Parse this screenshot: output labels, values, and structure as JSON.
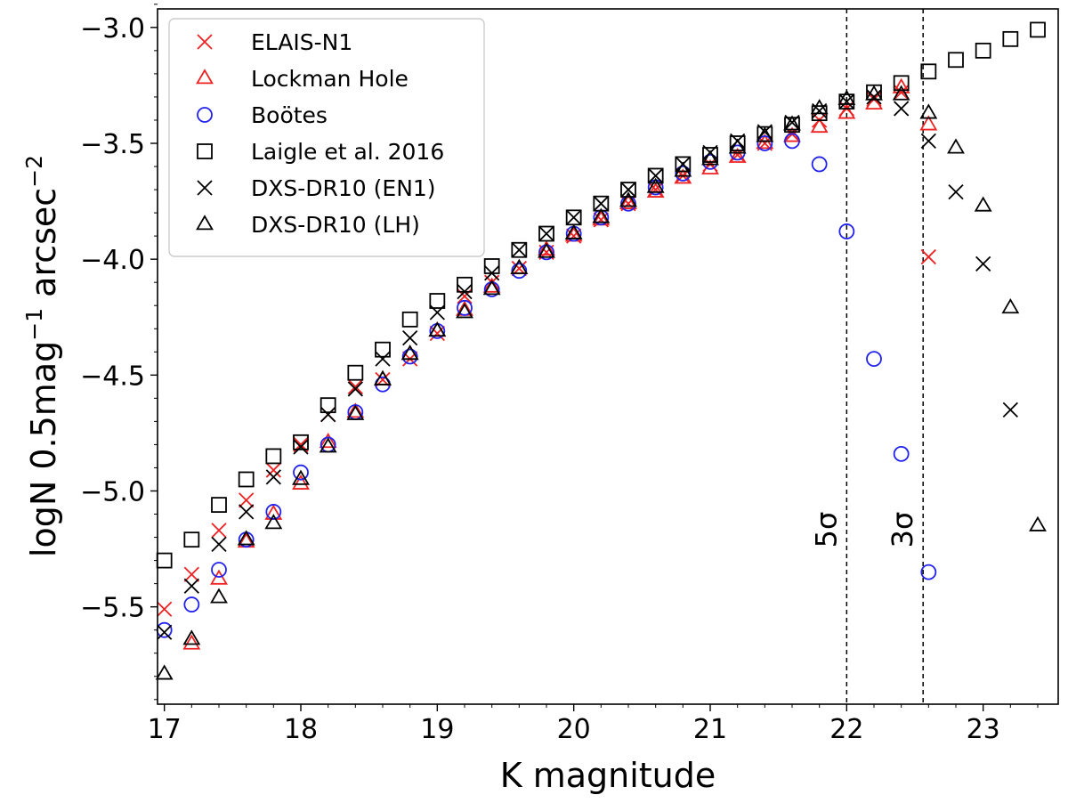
{
  "chart_data": {
    "type": "scatter",
    "title": "",
    "xlabel": "K magnitude",
    "ylabel_main": "logN 0.5mag",
    "ylabel_exp1": "−1",
    "ylabel_mid": " arcsec",
    "ylabel_exp2": "−2",
    "xlim": [
      16.95,
      23.55
    ],
    "ylim": [
      -5.92,
      -2.92
    ],
    "x_ticks": [
      17,
      18,
      19,
      20,
      21,
      22,
      23
    ],
    "x_tick_labels": [
      "17",
      "18",
      "19",
      "20",
      "21",
      "22",
      "23"
    ],
    "y_ticks": [
      -3.0,
      -3.5,
      -4.0,
      -4.5,
      -5.0,
      -5.5
    ],
    "y_tick_labels": [
      "−3.0",
      "−3.5",
      "−4.0",
      "−4.5",
      "−5.0",
      "−5.5"
    ],
    "legend_position": "top-left",
    "vlines": [
      {
        "x": 22.0,
        "label": "5σ"
      },
      {
        "x": 22.56,
        "label": "3σ"
      }
    ],
    "series": [
      {
        "name": "ELAIS-N1",
        "marker": "x",
        "color": "#ee2222",
        "points": [
          [
            17.0,
            -5.51
          ],
          [
            17.2,
            -5.36
          ],
          [
            17.4,
            -5.17
          ],
          [
            17.6,
            -5.04
          ],
          [
            17.8,
            -4.91
          ],
          [
            18.0,
            -4.8
          ],
          [
            18.2,
            -4.67
          ],
          [
            18.4,
            -4.55
          ],
          [
            18.6,
            -4.52
          ],
          [
            18.8,
            -4.43
          ],
          [
            19.0,
            -4.32
          ],
          [
            19.2,
            -4.16
          ],
          [
            19.4,
            -4.1
          ],
          [
            19.6,
            -4.04
          ],
          [
            19.8,
            -3.97
          ],
          [
            20.0,
            -3.9
          ],
          [
            20.2,
            -3.83
          ],
          [
            20.4,
            -3.76
          ],
          [
            20.6,
            -3.7
          ],
          [
            20.8,
            -3.64
          ],
          [
            21.0,
            -3.59
          ],
          [
            21.2,
            -3.55
          ],
          [
            21.4,
            -3.5
          ],
          [
            21.6,
            -3.46
          ],
          [
            21.8,
            -3.4
          ],
          [
            22.0,
            -3.35
          ],
          [
            22.2,
            -3.31
          ],
          [
            22.4,
            -3.28
          ],
          [
            22.6,
            -3.99
          ]
        ]
      },
      {
        "name": "Lockman Hole",
        "marker": "triangle",
        "color": "#ee2222",
        "points": [
          [
            17.2,
            -5.66
          ],
          [
            17.4,
            -5.38
          ],
          [
            17.6,
            -5.22
          ],
          [
            17.8,
            -5.1
          ],
          [
            18.0,
            -4.97
          ],
          [
            18.2,
            -4.79
          ],
          [
            18.4,
            -4.66
          ],
          [
            18.6,
            -4.52
          ],
          [
            18.8,
            -4.41
          ],
          [
            19.0,
            -4.31
          ],
          [
            19.2,
            -4.22
          ],
          [
            19.4,
            -4.12
          ],
          [
            19.6,
            -4.04
          ],
          [
            19.8,
            -3.96
          ],
          [
            20.0,
            -3.9
          ],
          [
            20.2,
            -3.83
          ],
          [
            20.4,
            -3.76
          ],
          [
            20.6,
            -3.71
          ],
          [
            20.8,
            -3.65
          ],
          [
            21.0,
            -3.61
          ],
          [
            21.2,
            -3.56
          ],
          [
            21.4,
            -3.5
          ],
          [
            21.6,
            -3.47
          ],
          [
            21.8,
            -3.43
          ],
          [
            22.0,
            -3.37
          ],
          [
            22.2,
            -3.33
          ],
          [
            22.4,
            -3.26
          ],
          [
            22.6,
            -3.42
          ]
        ]
      },
      {
        "name": "Boötes",
        "marker": "circle",
        "color": "#2222ee",
        "points": [
          [
            17.0,
            -5.6
          ],
          [
            17.2,
            -5.49
          ],
          [
            17.4,
            -5.34
          ],
          [
            17.6,
            -5.21
          ],
          [
            17.8,
            -5.09
          ],
          [
            18.0,
            -4.92
          ],
          [
            18.2,
            -4.8
          ],
          [
            18.4,
            -4.66
          ],
          [
            18.6,
            -4.54
          ],
          [
            18.8,
            -4.42
          ],
          [
            19.0,
            -4.31
          ],
          [
            19.2,
            -4.21
          ],
          [
            19.4,
            -4.13
          ],
          [
            19.6,
            -4.05
          ],
          [
            19.8,
            -3.97
          ],
          [
            20.0,
            -3.89
          ],
          [
            20.2,
            -3.82
          ],
          [
            20.4,
            -3.76
          ],
          [
            20.6,
            -3.69
          ],
          [
            20.8,
            -3.63
          ],
          [
            21.0,
            -3.58
          ],
          [
            21.2,
            -3.54
          ],
          [
            21.4,
            -3.5
          ],
          [
            21.6,
            -3.49
          ],
          [
            21.8,
            -3.59
          ],
          [
            22.0,
            -3.88
          ],
          [
            22.2,
            -4.43
          ],
          [
            22.4,
            -4.84
          ],
          [
            22.6,
            -5.35
          ]
        ]
      },
      {
        "name": "Laigle et al. 2016",
        "marker": "square",
        "color": "#000000",
        "points": [
          [
            17.0,
            -5.3
          ],
          [
            17.2,
            -5.21
          ],
          [
            17.4,
            -5.06
          ],
          [
            17.6,
            -4.95
          ],
          [
            17.8,
            -4.85
          ],
          [
            18.0,
            -4.79
          ],
          [
            18.2,
            -4.63
          ],
          [
            18.4,
            -4.49
          ],
          [
            18.6,
            -4.39
          ],
          [
            18.8,
            -4.26
          ],
          [
            19.0,
            -4.18
          ],
          [
            19.2,
            -4.11
          ],
          [
            19.4,
            -4.03
          ],
          [
            19.6,
            -3.96
          ],
          [
            19.8,
            -3.89
          ],
          [
            20.0,
            -3.82
          ],
          [
            20.2,
            -3.76
          ],
          [
            20.4,
            -3.7
          ],
          [
            20.6,
            -3.64
          ],
          [
            20.8,
            -3.59
          ],
          [
            21.0,
            -3.55
          ],
          [
            21.2,
            -3.5
          ],
          [
            21.4,
            -3.46
          ],
          [
            21.6,
            -3.42
          ],
          [
            21.8,
            -3.37
          ],
          [
            22.0,
            -3.32
          ],
          [
            22.2,
            -3.28
          ],
          [
            22.4,
            -3.24
          ],
          [
            22.6,
            -3.19
          ],
          [
            22.8,
            -3.14
          ],
          [
            23.0,
            -3.1
          ],
          [
            23.2,
            -3.05
          ],
          [
            23.4,
            -3.01
          ]
        ]
      },
      {
        "name": "DXS-DR10 (EN1)",
        "marker": "x",
        "color": "#000000",
        "points": [
          [
            17.0,
            -5.61
          ],
          [
            17.2,
            -5.41
          ],
          [
            17.4,
            -5.23
          ],
          [
            17.6,
            -5.09
          ],
          [
            17.8,
            -4.94
          ],
          [
            18.0,
            -4.81
          ],
          [
            18.2,
            -4.67
          ],
          [
            18.4,
            -4.56
          ],
          [
            18.6,
            -4.43
          ],
          [
            18.8,
            -4.34
          ],
          [
            19.0,
            -4.23
          ],
          [
            19.2,
            -4.14
          ],
          [
            19.4,
            -4.06
          ],
          [
            19.6,
            -3.96
          ],
          [
            19.8,
            -3.89
          ],
          [
            20.0,
            -3.82
          ],
          [
            20.2,
            -3.76
          ],
          [
            20.4,
            -3.7
          ],
          [
            20.6,
            -3.64
          ],
          [
            20.8,
            -3.59
          ],
          [
            21.0,
            -3.54
          ],
          [
            21.2,
            -3.49
          ],
          [
            21.4,
            -3.45
          ],
          [
            21.6,
            -3.41
          ],
          [
            21.8,
            -3.36
          ],
          [
            22.0,
            -3.32
          ],
          [
            22.2,
            -3.3
          ],
          [
            22.4,
            -3.35
          ],
          [
            22.6,
            -3.49
          ],
          [
            22.8,
            -3.71
          ],
          [
            23.0,
            -4.02
          ],
          [
            23.2,
            -4.65
          ]
        ]
      },
      {
        "name": "DXS-DR10 (LH)",
        "marker": "triangle",
        "color": "#000000",
        "points": [
          [
            17.0,
            -5.79
          ],
          [
            17.2,
            -5.64
          ],
          [
            17.4,
            -5.46
          ],
          [
            17.6,
            -5.21
          ],
          [
            17.8,
            -5.14
          ],
          [
            18.0,
            -4.95
          ],
          [
            18.2,
            -4.81
          ],
          [
            18.4,
            -4.67
          ],
          [
            18.6,
            -4.52
          ],
          [
            18.8,
            -4.41
          ],
          [
            19.0,
            -4.31
          ],
          [
            19.2,
            -4.23
          ],
          [
            19.4,
            -4.13
          ],
          [
            19.6,
            -4.04
          ],
          [
            19.8,
            -3.97
          ],
          [
            20.0,
            -3.89
          ],
          [
            20.2,
            -3.82
          ],
          [
            20.4,
            -3.75
          ],
          [
            20.6,
            -3.69
          ],
          [
            20.8,
            -3.62
          ],
          [
            21.0,
            -3.57
          ],
          [
            21.2,
            -3.52
          ],
          [
            21.4,
            -3.47
          ],
          [
            21.6,
            -3.42
          ],
          [
            21.8,
            -3.35
          ],
          [
            22.0,
            -3.31
          ],
          [
            22.2,
            -3.29
          ],
          [
            22.4,
            -3.29
          ],
          [
            22.6,
            -3.37
          ],
          [
            22.8,
            -3.52
          ],
          [
            23.0,
            -3.77
          ],
          [
            23.2,
            -4.21
          ],
          [
            23.4,
            -5.15
          ]
        ]
      }
    ]
  }
}
